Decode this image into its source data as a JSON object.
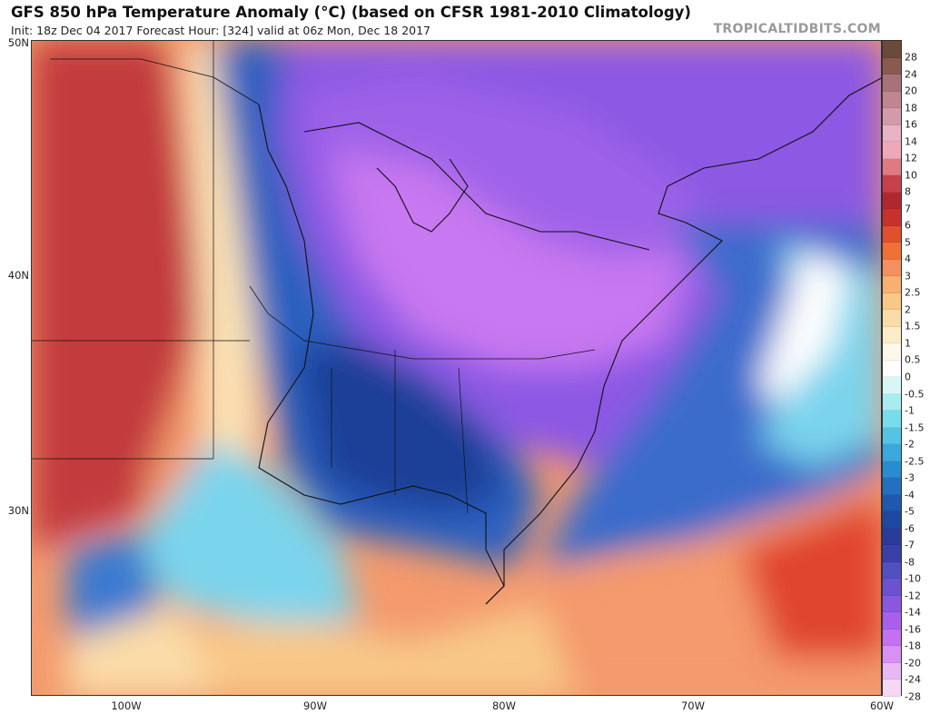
{
  "header": {
    "title": "GFS 850 hPa Temperature Anomaly (°C) (based on CFSR 1981-2010 Climatology)",
    "subtitle": "Init: 18z Dec 04 2017   Forecast Hour: [324]   valid at 06z Mon, Dec 18 2017",
    "brand": "TROPICALTIDBITS.COM"
  },
  "axes": {
    "lat_labels": [
      "50N",
      "40N",
      "30N"
    ],
    "lon_labels": [
      "100W",
      "90W",
      "80W",
      "70W",
      "60W"
    ]
  },
  "colorbar": {
    "labels": [
      "28",
      "24",
      "20",
      "18",
      "16",
      "14",
      "12",
      "10",
      "8",
      "7",
      "6",
      "5",
      "4",
      "3",
      "2.5",
      "2",
      "1.5",
      "1",
      "0.5",
      "0",
      "-0.5",
      "-1",
      "-1.5",
      "-2",
      "-2.5",
      "-3",
      "-4",
      "-5",
      "-6",
      "-7",
      "-8",
      "-10",
      "-12",
      "-14",
      "-16",
      "-18",
      "-20",
      "-24",
      "-28"
    ],
    "colors": [
      "#6b4a3a",
      "#8a5a4e",
      "#a8727a",
      "#c08690",
      "#d49aaa",
      "#e6b4c4",
      "#f0a8b8",
      "#e07a82",
      "#c8404a",
      "#b0282e",
      "#c8302c",
      "#e0502c",
      "#f07038",
      "#f49060",
      "#f6b070",
      "#f8c888",
      "#fadca8",
      "#fcecc8",
      "#fff8e8",
      "#ffffff",
      "#d8f6f6",
      "#a8ecf0",
      "#78dcec",
      "#54c4e4",
      "#3aa8dc",
      "#2a8cd0",
      "#2470c0",
      "#2058b0",
      "#1e48a0",
      "#2a3c98",
      "#3a40a8",
      "#5050c0",
      "#6a52d0",
      "#8a58e0",
      "#a860ea",
      "#c470f0",
      "#d890f4",
      "#e8b8f4",
      "#f4d8f4"
    ]
  },
  "map_palette": {
    "ocean_warm": "#f49a6c",
    "ocean_hot": "#e0452e",
    "ocean_pale": "#fbe2b4",
    "west_warm": "#c23a3c",
    "cold_core": "#1f3f98",
    "purple": "#8c58e4",
    "magenta": "#c878f0",
    "light_blue": "#7ad4ec"
  }
}
